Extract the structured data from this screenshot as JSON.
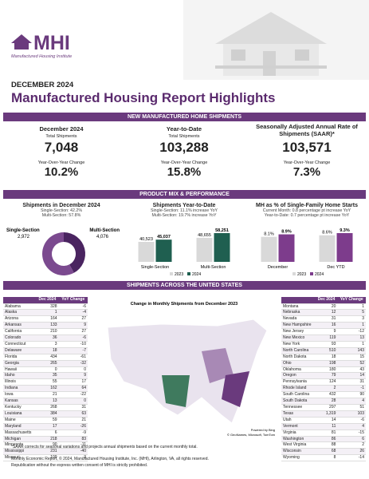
{
  "header": {
    "logo": "MHI",
    "org": "Manufactured Housing Institute",
    "month": "DECEMBER 2024",
    "title": "Manufactured Housing Report Highlights"
  },
  "sections": [
    "NEW MANUFACTURED HOME SHIPMENTS",
    "PRODUCT MIX & PERFORMANCE",
    "SHIPMENTS ACROSS THE UNITED STATES"
  ],
  "kpis": [
    {
      "heading": "December 2024",
      "sub": "Total Shipments",
      "value": "7,048",
      "change_label": "Year-Over-Year Change",
      "change": "10.2%"
    },
    {
      "heading": "Year-to-Date",
      "sub": "Total Shipments",
      "value": "103,288",
      "change_label": "Year-Over-Year Change",
      "change": "15.8%"
    },
    {
      "heading": "Seasonally Adjusted Annual Rate of Shipments (SAAR)*",
      "value": "103,571",
      "change_label": "Year-Over-Year Change",
      "change": "7.3%"
    }
  ],
  "mix": {
    "type": "pie",
    "title": "Shipments in December 2024",
    "lines": [
      "Single-Section: 42.2%",
      "Multi-Section: 57.8%"
    ],
    "categories": [
      "Single-Section",
      "Multi-Section"
    ],
    "values": [
      2972,
      4076
    ],
    "value_labels": [
      "2,972",
      "4,076"
    ],
    "colors": [
      "#4a2460",
      "#7b4a8f"
    ]
  },
  "ytd": {
    "type": "bar",
    "title": "Shipments Year-to-Date",
    "lines": [
      "Single-Section: 11.1% increase YoY",
      "Multi-Section: 19.7% increase YoY"
    ],
    "categories": [
      "Single-Section",
      "Multi-Section"
    ],
    "series": [
      {
        "name": "2023",
        "color": "#d9d9d9",
        "values": [
          40523,
          48655
        ],
        "value_labels": [
          "40,523",
          "48,655"
        ]
      },
      {
        "name": "2024",
        "color": "#1f5f50",
        "values": [
          45037,
          58251
        ],
        "value_labels": [
          "45,037",
          "58,251"
        ]
      }
    ]
  },
  "share": {
    "type": "bar",
    "title": "MH as % of Single-Family Home Starts",
    "lines": [
      "Current Month: 0.8 percentage pt increase YoY",
      "Year-to-Date: 0.7 percentage pt increase YoY"
    ],
    "categories": [
      "December",
      "Dec YTD"
    ],
    "series": [
      {
        "name": "2023",
        "color": "#d9d9d9",
        "values": [
          8.1,
          8.6
        ],
        "value_labels": [
          "8.1%",
          "8.6%"
        ]
      },
      {
        "name": "2024",
        "color": "#7d3c8c",
        "values": [
          8.9,
          9.3
        ],
        "value_labels": [
          "8.9%",
          "9.3%"
        ]
      }
    ]
  },
  "map": {
    "title": "Change in Monthly Shipments from December 2023",
    "credit": "Powered by Bing",
    "copyright": "© GeoNames, Microsoft, TomTom"
  },
  "table_left": {
    "columns": [
      "Dec 2024",
      "YoY Change"
    ],
    "rows": [
      [
        "Alabama",
        "328",
        "-6"
      ],
      [
        "Alaska",
        "1",
        "-4"
      ],
      [
        "Arizona",
        "164",
        "27"
      ],
      [
        "Arkansas",
        "133",
        "9"
      ],
      [
        "California",
        "210",
        "27"
      ],
      [
        "Colorado",
        "36",
        "-6"
      ],
      [
        "Connecticut",
        "3",
        "-10"
      ],
      [
        "Delaware",
        "18",
        "-7"
      ],
      [
        "Florida",
        "434",
        "-61"
      ],
      [
        "Georgia",
        "265",
        "-32"
      ],
      [
        "Hawaii",
        "0",
        "0"
      ],
      [
        "Idaho",
        "35",
        "9"
      ],
      [
        "Illinois",
        "55",
        "17"
      ],
      [
        "Indiana",
        "162",
        "64"
      ],
      [
        "Iowa",
        "21",
        "-22"
      ],
      [
        "Kansas",
        "13",
        "0"
      ],
      [
        "Kentucky",
        "268",
        "31"
      ],
      [
        "Louisiana",
        "384",
        "63"
      ],
      [
        "Maine",
        "59",
        "21"
      ],
      [
        "Maryland",
        "17",
        "-26"
      ],
      [
        "Massachusetts",
        "6",
        "-9"
      ],
      [
        "Michigan",
        "218",
        "83"
      ],
      [
        "Minnesota",
        "90",
        "-11"
      ],
      [
        "Mississippi",
        "231",
        "-40"
      ],
      [
        "Missouri",
        "109",
        "-3"
      ]
    ]
  },
  "table_right": {
    "columns": [
      "Dec 2024",
      "YoY Change"
    ],
    "rows": [
      [
        "Montana",
        "20",
        "1"
      ],
      [
        "Nebraska",
        "12",
        "5"
      ],
      [
        "Nevada",
        "31",
        "3"
      ],
      [
        "New Hampshire",
        "16",
        "1"
      ],
      [
        "New Jersey",
        "9",
        "-12"
      ],
      [
        "New Mexico",
        "119",
        "13"
      ],
      [
        "New York",
        "93",
        "1"
      ],
      [
        "North Carolina",
        "510",
        "143"
      ],
      [
        "North Dakota",
        "18",
        "15"
      ],
      [
        "Ohio",
        "198",
        "52"
      ],
      [
        "Oklahoma",
        "180",
        "43"
      ],
      [
        "Oregon",
        "79",
        "14"
      ],
      [
        "Pennsylvania",
        "124",
        "31"
      ],
      [
        "Rhode Island",
        "2",
        "-1"
      ],
      [
        "South Carolina",
        "432",
        "90"
      ],
      [
        "South Dakota",
        "28",
        "4"
      ],
      [
        "Tennessee",
        "297",
        "51"
      ],
      [
        "Texas",
        "1,319",
        "103"
      ],
      [
        "Utah",
        "14",
        "-6"
      ],
      [
        "Vermont",
        "11",
        "4"
      ],
      [
        "Virginia",
        "81",
        "-15"
      ],
      [
        "Washington",
        "86",
        "6"
      ],
      [
        "West Virginia",
        "88",
        "2"
      ],
      [
        "Wisconsin",
        "68",
        "26"
      ],
      [
        "Wyoming",
        "8",
        "-14"
      ]
    ]
  },
  "footnote": "*SAAR corrects for seasonal variations and projects annual shipments based on the current monthly total.",
  "footer": [
    "Monthly Economic Report, © 2024, Manufactured Housing Institute, Inc. (MHI), Arlington, VA, all rights reserved.",
    "Republication without the express written consent of MHI is strictly prohibited."
  ]
}
